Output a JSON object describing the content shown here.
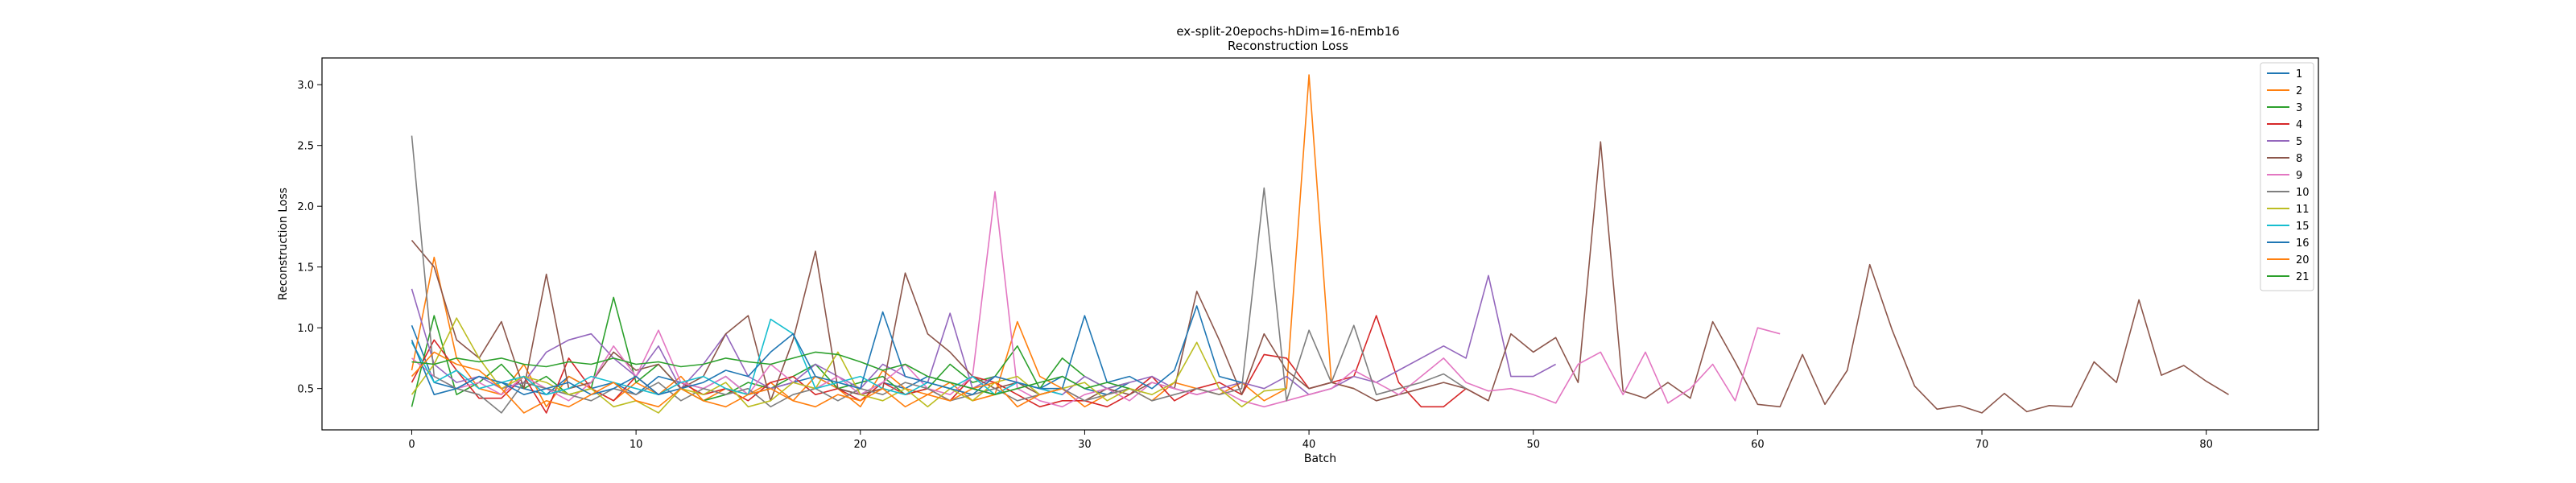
{
  "chart_data": {
    "type": "line",
    "title": "ex-split-20epochs-hDim=16-nEmb16",
    "subtitle": "Reconstruction Loss",
    "xlabel": "Batch",
    "ylabel": "Reconstruction Loss",
    "xlim": [
      -4,
      85
    ],
    "ylim": [
      0.16,
      3.22
    ],
    "xticks": [
      0,
      10,
      20,
      30,
      40,
      50,
      60,
      70,
      80
    ],
    "yticks": [
      0.5,
      1.0,
      1.5,
      2.0,
      2.5,
      3.0
    ],
    "xtick_labels": [
      "0",
      "10",
      "20",
      "30",
      "40",
      "50",
      "60",
      "70",
      "80"
    ],
    "ytick_labels": [
      "0.5",
      "1.0",
      "1.5",
      "2.0",
      "2.5",
      "3.0"
    ],
    "grid": false,
    "legend_position": "upper right",
    "series": [
      {
        "name": "1",
        "color": "#1f77b4",
        "values": [
          1.02,
          0.55,
          0.5,
          0.6,
          0.55,
          0.5,
          0.45,
          0.6,
          0.5,
          0.55,
          0.45,
          0.6,
          0.55,
          0.5,
          0.6,
          0.45,
          0.5,
          0.55,
          0.6,
          0.5,
          0.45,
          0.55,
          0.5,
          0.6,
          0.55,
          0.5,
          0.45,
          0.55,
          0.5,
          0.6,
          0.5,
          0.45,
          0.55
        ]
      },
      {
        "name": "2",
        "color": "#ff7f0e",
        "values": [
          0.65,
          1.58,
          0.75,
          0.5,
          0.45,
          0.7,
          0.35,
          0.6,
          0.5,
          0.4,
          0.55,
          0.45,
          0.6,
          0.4,
          0.5,
          0.45,
          0.55,
          0.4,
          0.6,
          0.5,
          0.35,
          0.65,
          0.5,
          0.45,
          0.55,
          0.4,
          0.45,
          1.05,
          0.6,
          0.5,
          0.35,
          0.45,
          0.5,
          0.4,
          0.55,
          0.5,
          0.45,
          0.55,
          0.4,
          0.5,
          3.08,
          0.55,
          0.5
        ]
      },
      {
        "name": "3",
        "color": "#2ca02c",
        "values": [
          0.35,
          1.1,
          0.45,
          0.55,
          0.7,
          0.5,
          0.6,
          0.45,
          0.5,
          1.25,
          0.55,
          0.7,
          0.5,
          0.4,
          0.45,
          0.55,
          0.5,
          0.6,
          0.7,
          0.5,
          0.55,
          0.6,
          0.45,
          0.5,
          0.7,
          0.55,
          0.6,
          0.85,
          0.5,
          0.75,
          0.6,
          0.5,
          0.55
        ]
      },
      {
        "name": "4",
        "color": "#d62728",
        "values": [
          0.55,
          0.9,
          0.65,
          0.42,
          0.42,
          0.6,
          0.3,
          0.75,
          0.5,
          0.4,
          0.6,
          0.45,
          0.55,
          0.45,
          0.5,
          0.4,
          0.55,
          0.6,
          0.45,
          0.5,
          0.4,
          0.55,
          0.45,
          0.5,
          0.4,
          0.6,
          0.55,
          0.45,
          0.35,
          0.4,
          0.4,
          0.35,
          0.45,
          0.6,
          0.4,
          0.5,
          0.55,
          0.45,
          0.78,
          0.75,
          0.5,
          0.55,
          0.6,
          1.1,
          0.55,
          0.35,
          0.35,
          0.5,
          0.4
        ]
      },
      {
        "name": "5",
        "color": "#9467bd",
        "values": [
          1.32,
          0.7,
          0.55,
          0.6,
          0.5,
          0.55,
          0.8,
          0.9,
          0.95,
          0.75,
          0.6,
          0.85,
          0.5,
          0.7,
          0.95,
          0.6,
          0.5,
          0.55,
          0.7,
          0.6,
          0.5,
          0.7,
          0.6,
          0.55,
          1.12,
          0.5,
          0.6,
          0.55,
          0.5,
          0.45,
          0.6,
          0.5,
          0.55,
          0.6,
          0.5,
          0.45,
          0.5,
          0.55,
          0.5,
          0.6,
          0.45,
          0.5,
          0.6,
          0.55,
          0.65,
          0.75,
          0.85,
          0.75,
          1.43,
          0.6,
          0.6,
          0.7
        ]
      },
      {
        "name": "8",
        "color": "#8c564b",
        "values": [
          1.72,
          1.5,
          0.9,
          0.75,
          1.05,
          0.5,
          1.44,
          0.5,
          0.55,
          0.8,
          0.65,
          0.7,
          0.5,
          0.6,
          0.95,
          1.1,
          0.4,
          0.9,
          1.63,
          0.5,
          0.45,
          0.5,
          1.45,
          0.95,
          0.8,
          0.6,
          0.5,
          0.55,
          0.45,
          0.5,
          0.4,
          0.5,
          0.45,
          0.55,
          0.5,
          1.3,
          0.9,
          0.45,
          0.95,
          0.65,
          0.5,
          0.55,
          0.5,
          0.4,
          0.45,
          0.5,
          0.55,
          0.5,
          0.4,
          0.95,
          0.8,
          0.92,
          0.55,
          2.53,
          0.48,
          0.42,
          0.55,
          0.42,
          1.05,
          0.72,
          0.37,
          0.35,
          0.78,
          0.37,
          0.65,
          1.52,
          0.98,
          0.52,
          0.33,
          0.36,
          0.3,
          0.46,
          0.31,
          0.36,
          0.35,
          0.72,
          0.55,
          1.23,
          0.61,
          0.69,
          0.56,
          0.45
        ]
      },
      {
        "name": "9",
        "color": "#e377c2",
        "values": [
          0.75,
          0.6,
          0.5,
          0.55,
          0.45,
          0.6,
          0.5,
          0.4,
          0.55,
          0.85,
          0.6,
          0.98,
          0.55,
          0.5,
          0.6,
          0.45,
          0.7,
          0.55,
          0.5,
          0.6,
          0.45,
          0.55,
          0.7,
          0.5,
          0.45,
          0.6,
          2.12,
          0.5,
          0.4,
          0.35,
          0.45,
          0.5,
          0.4,
          0.55,
          0.5,
          0.45,
          0.5,
          0.4,
          0.35,
          0.4,
          0.45,
          0.5,
          0.65,
          0.55,
          0.45,
          0.6,
          0.75,
          0.55,
          0.48,
          0.5,
          0.45,
          0.38,
          0.7,
          0.8,
          0.45,
          0.8,
          0.38,
          0.5,
          0.7,
          0.4,
          1.0,
          0.95
        ]
      },
      {
        "name": "10",
        "color": "#7f7f7f",
        "values": [
          2.58,
          0.6,
          0.5,
          0.45,
          0.3,
          0.55,
          0.5,
          0.45,
          0.4,
          0.5,
          0.45,
          0.55,
          0.4,
          0.5,
          0.45,
          0.5,
          0.35,
          0.45,
          0.5,
          0.4,
          0.5,
          0.45,
          0.55,
          0.5,
          0.4,
          0.45,
          0.5,
          0.4,
          0.45,
          0.5,
          0.4,
          0.45,
          0.5,
          0.4,
          0.45,
          0.5,
          0.45,
          0.5,
          2.15,
          0.4,
          0.98,
          0.55,
          1.02,
          0.45,
          0.5,
          0.55,
          0.62,
          0.5
        ]
      },
      {
        "name": "11",
        "color": "#bcbd22",
        "values": [
          0.45,
          0.7,
          1.08,
          0.75,
          0.5,
          0.6,
          0.55,
          0.45,
          0.5,
          0.35,
          0.4,
          0.3,
          0.5,
          0.45,
          0.55,
          0.35,
          0.4,
          0.55,
          0.5,
          0.8,
          0.45,
          0.4,
          0.5,
          0.35,
          0.5,
          0.4,
          0.55,
          0.6,
          0.45,
          0.5,
          0.55,
          0.4,
          0.5,
          0.45,
          0.55,
          0.88,
          0.5,
          0.35,
          0.48,
          0.5
        ]
      },
      {
        "name": "15",
        "color": "#17becf",
        "values": [
          0.88,
          0.55,
          0.65,
          0.5,
          0.55,
          0.6,
          0.45,
          0.5,
          0.6,
          0.55,
          0.5,
          0.45,
          0.55,
          0.6,
          0.5,
          0.45,
          1.07,
          0.95,
          0.5,
          0.55,
          0.6,
          0.5,
          0.45,
          0.55,
          0.5,
          0.6,
          0.45,
          0.55,
          0.5,
          0.45
        ]
      },
      {
        "name": "16",
        "color": "#1f77b4",
        "values": [
          0.9,
          0.45,
          0.5,
          0.6,
          0.55,
          0.45,
          0.5,
          0.55,
          0.45,
          0.5,
          0.6,
          0.45,
          0.5,
          0.55,
          0.65,
          0.6,
          0.8,
          0.95,
          0.6,
          0.55,
          0.5,
          1.13,
          0.6,
          0.55,
          0.5,
          0.45,
          0.6,
          0.55,
          0.5,
          0.5,
          1.1,
          0.55,
          0.6,
          0.5,
          0.65,
          1.18,
          0.6,
          0.55
        ]
      },
      {
        "name": "20",
        "color": "#ff7f0e",
        "values": [
          0.6,
          0.8,
          0.7,
          0.65,
          0.5,
          0.3,
          0.4,
          0.35,
          0.45,
          0.55,
          0.4,
          0.35,
          0.5,
          0.4,
          0.35,
          0.45,
          0.5,
          0.4,
          0.35,
          0.45,
          0.4,
          0.5,
          0.35,
          0.45,
          0.4,
          0.5,
          0.55,
          0.35,
          0.45,
          0.5
        ]
      },
      {
        "name": "21",
        "color": "#2ca02c",
        "values": [
          0.72,
          0.7,
          0.75,
          0.72,
          0.75,
          0.7,
          0.68,
          0.72,
          0.7,
          0.75,
          0.7,
          0.72,
          0.68,
          0.7,
          0.75,
          0.72,
          0.7,
          0.75,
          0.8,
          0.78,
          0.72,
          0.65,
          0.7,
          0.6,
          0.55,
          0.5,
          0.45,
          0.5,
          0.55,
          0.6,
          0.5,
          0.55,
          0.5
        ]
      }
    ]
  }
}
